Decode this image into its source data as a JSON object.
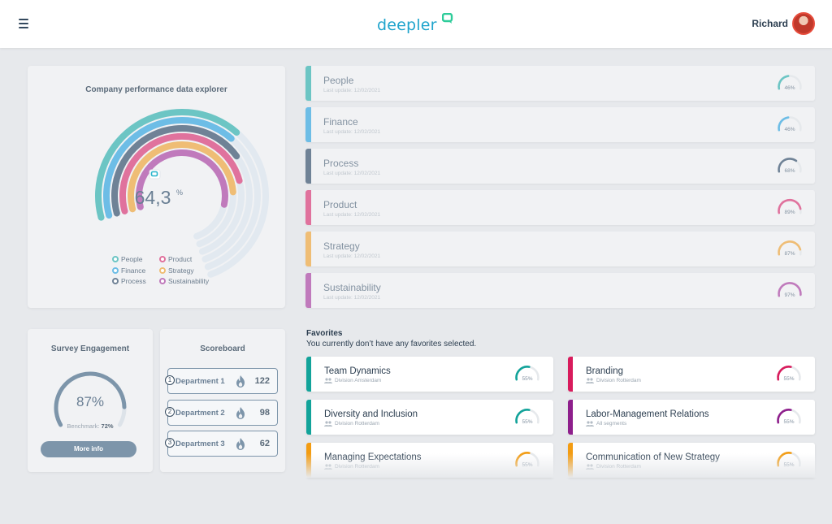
{
  "header": {
    "brand": "deepler",
    "user_name": "Richard"
  },
  "explorer": {
    "title": "Company performance data explorer",
    "center_value": "64,3",
    "center_unit": "%",
    "legend": [
      {
        "label": "People",
        "color": "#6cc5c4"
      },
      {
        "label": "Finance",
        "color": "#6dbde6"
      },
      {
        "label": "Process",
        "color": "#6f8296"
      },
      {
        "label": "Product",
        "color": "#e0729d"
      },
      {
        "label": "Strategy",
        "color": "#efbd75"
      },
      {
        "label": "Sustainability",
        "color": "#c07abc"
      }
    ],
    "fractions": [
      0.55,
      0.55,
      0.6,
      0.68,
      0.72,
      0.78
    ]
  },
  "survey": {
    "title": "Survey Engagement",
    "value": "87%",
    "fraction": 0.87,
    "benchmark_label": "Benchmark:",
    "benchmark_value": "72%",
    "button_label": "More info"
  },
  "scoreboard": {
    "title": "Scoreboard",
    "rows": [
      {
        "rank": "1",
        "name": "Department 1",
        "score": "122"
      },
      {
        "rank": "2",
        "name": "Department 2",
        "score": "98"
      },
      {
        "rank": "3",
        "name": "Department 3",
        "score": "62"
      }
    ]
  },
  "categories": [
    {
      "name": "People",
      "date": "Last update: 12/02/2021",
      "pct": "46%",
      "fraction": 0.46,
      "color": "#6cc5c4"
    },
    {
      "name": "Finance",
      "date": "Last update: 12/02/2021",
      "pct": "46%",
      "fraction": 0.46,
      "color": "#6dbde6"
    },
    {
      "name": "Process",
      "date": "Last update: 12/02/2021",
      "pct": "68%",
      "fraction": 0.68,
      "color": "#6f8296"
    },
    {
      "name": "Product",
      "date": "Last update: 12/02/2021",
      "pct": "89%",
      "fraction": 0.89,
      "color": "#e0729d"
    },
    {
      "name": "Strategy",
      "date": "Last update: 12/02/2021",
      "pct": "87%",
      "fraction": 0.87,
      "color": "#efbd75"
    },
    {
      "name": "Sustainability",
      "date": "Last update: 12/02/2021",
      "pct": "97%",
      "fraction": 0.97,
      "color": "#c07abc"
    }
  ],
  "favorites": {
    "title": "Favorites",
    "subtitle": "You currently don’t have any favorites selected.",
    "items": [
      {
        "name": "Team Dynamics",
        "meta": "Division Amsterdam",
        "pct": "55%",
        "fraction": 0.55,
        "color": "#12a39a"
      },
      {
        "name": "Branding",
        "meta": "Division Rotterdam",
        "pct": "55%",
        "fraction": 0.55,
        "color": "#d81b5c"
      },
      {
        "name": "Diversity and Inclusion",
        "meta": "Division Rotterdam",
        "pct": "55%",
        "fraction": 0.55,
        "color": "#12a39a"
      },
      {
        "name": "Labor-Management Relations",
        "meta": "All segments",
        "pct": "55%",
        "fraction": 0.55,
        "color": "#8e1f8c"
      },
      {
        "name": "Managing Expectations",
        "meta": "Division Rotterdam",
        "pct": "55%",
        "fraction": 0.55,
        "color": "#f39c12"
      },
      {
        "name": "Communication of New Strategy",
        "meta": "Division Rotterdam",
        "pct": "55%",
        "fraction": 0.55,
        "color": "#f39c12"
      }
    ]
  }
}
